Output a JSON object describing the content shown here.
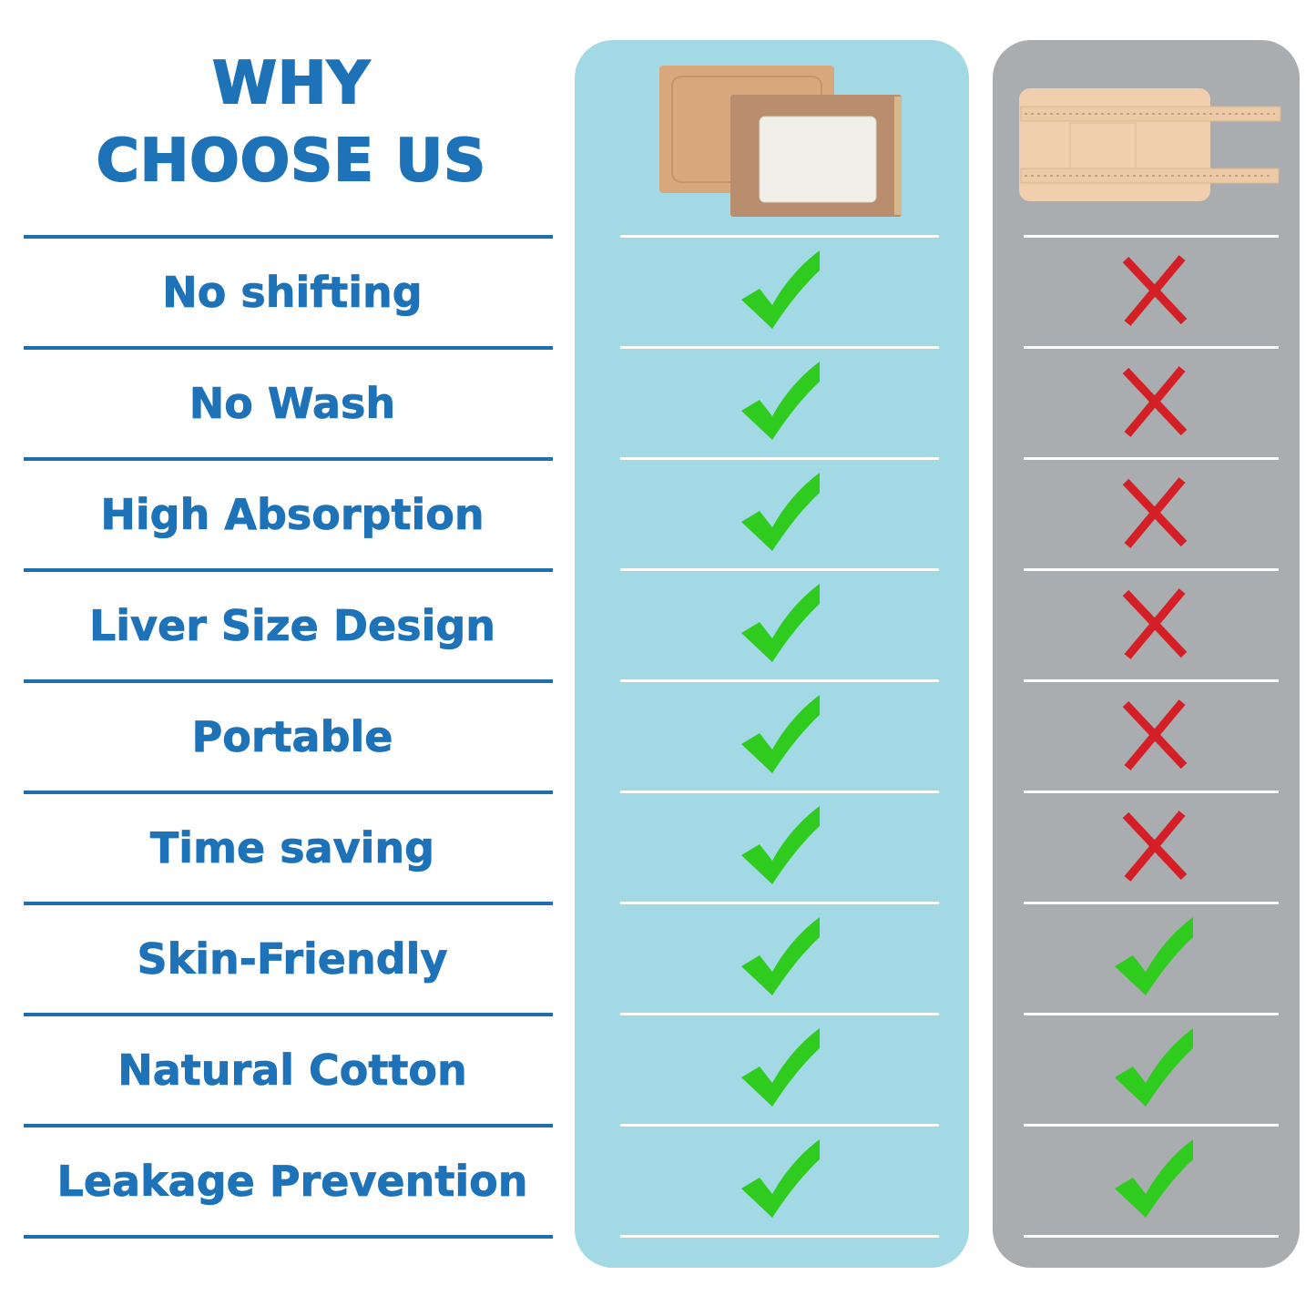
{
  "title": {
    "line1": "WHY",
    "line2": "CHOOSE US"
  },
  "colors": {
    "text_blue": "#1d72b8",
    "ours_panel": "#a3d8e5",
    "theirs_panel": "#a9adaf",
    "check_green": "#2fcb1f",
    "cross_red": "#d41f26"
  },
  "columns": [
    {
      "product": "adhesive-pad-patch-image"
    },
    {
      "product": "fabric-strap-pouch-image"
    }
  ],
  "rows": [
    {
      "label": "No shifting",
      "ours": true,
      "theirs": false
    },
    {
      "label": "No Wash",
      "ours": true,
      "theirs": false
    },
    {
      "label": "High Absorption",
      "ours": true,
      "theirs": false
    },
    {
      "label": "Liver Size Design",
      "ours": true,
      "theirs": false
    },
    {
      "label": "Portable",
      "ours": true,
      "theirs": false
    },
    {
      "label": "Time saving",
      "ours": true,
      "theirs": false
    },
    {
      "label": "Skin-Friendly",
      "ours": true,
      "theirs": true
    },
    {
      "label": "Natural Cotton",
      "ours": true,
      "theirs": true
    },
    {
      "label": "Leakage Prevention",
      "ours": true,
      "theirs": true
    }
  ]
}
